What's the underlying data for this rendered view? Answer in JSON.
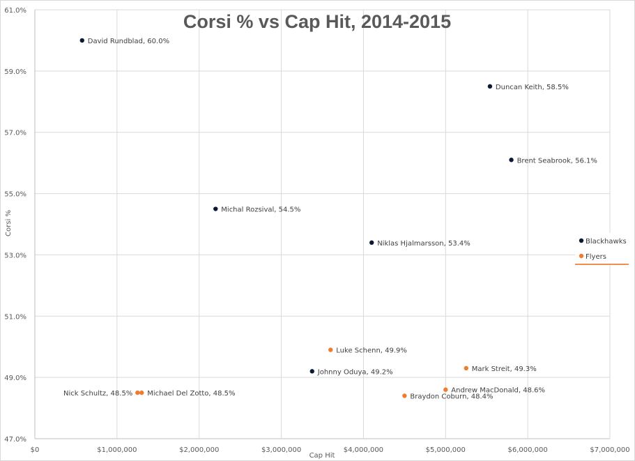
{
  "chart_data": {
    "type": "scatter",
    "title": "Corsi % vs Cap Hit, 2014-2015",
    "xlabel": "Cap Hit",
    "ylabel": "Corsi %",
    "xlim": [
      0,
      7000000
    ],
    "ylim": [
      47.0,
      61.0
    ],
    "x_ticks": [
      0,
      1000000,
      2000000,
      3000000,
      4000000,
      5000000,
      6000000,
      7000000
    ],
    "x_tick_labels": [
      "$0",
      "$1,000,000",
      "$2,000,000",
      "$3,000,000",
      "$4,000,000",
      "$5,000,000",
      "$6,000,000",
      "$7,000,000"
    ],
    "y_ticks": [
      47.0,
      49.0,
      51.0,
      53.0,
      55.0,
      57.0,
      59.0,
      61.0
    ],
    "y_tick_labels": [
      "47.0%",
      "49.0%",
      "51.0%",
      "53.0%",
      "55.0%",
      "57.0%",
      "59.0%",
      "61.0%"
    ],
    "grid": true,
    "legend_position": "right",
    "series": [
      {
        "name": "Blackhawks",
        "color": "#0b1a33",
        "points": [
          {
            "label": "David Rundblad, 60.0%",
            "x": 575000,
            "y": 60.0,
            "label_side": "right"
          },
          {
            "label": "Duncan Keith, 58.5%",
            "x": 5540000,
            "y": 58.5,
            "label_side": "right"
          },
          {
            "label": "Brent Seabrook, 56.1%",
            "x": 5800000,
            "y": 56.1,
            "label_side": "right"
          },
          {
            "label": "Michal Rozsival, 54.5%",
            "x": 2200000,
            "y": 54.5,
            "label_side": "right"
          },
          {
            "label": "Niklas Hjalmarsson, 53.4%",
            "x": 4100000,
            "y": 53.4,
            "label_side": "right"
          },
          {
            "label": "Johnny Oduya, 49.2%",
            "x": 3375000,
            "y": 49.2,
            "label_side": "right"
          }
        ]
      },
      {
        "name": "Flyers",
        "color": "#ed7d31",
        "points": [
          {
            "label": "Luke Schenn, 49.9%",
            "x": 3600000,
            "y": 49.9,
            "label_side": "right"
          },
          {
            "label": "Mark Streit, 49.3%",
            "x": 5250000,
            "y": 49.3,
            "label_side": "right"
          },
          {
            "label": "Andrew MacDonald, 48.6%",
            "x": 5000000,
            "y": 48.6,
            "label_side": "right"
          },
          {
            "label": "Braydon Coburn, 48.4%",
            "x": 4500000,
            "y": 48.4,
            "label_side": "right"
          },
          {
            "label": "Nick Schultz, 48.5%",
            "x": 1250000,
            "y": 48.5,
            "label_side": "left"
          },
          {
            "label": "Michael Del Zotto, 48.5%",
            "x": 1300000,
            "y": 48.5,
            "label_side": "right"
          }
        ]
      }
    ]
  }
}
